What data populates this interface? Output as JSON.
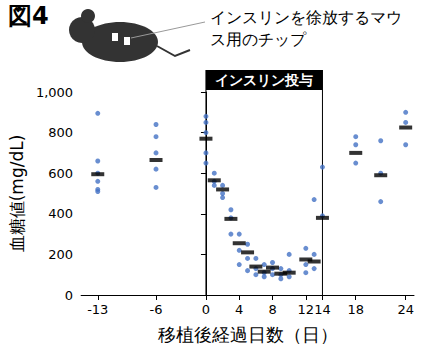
{
  "chart_data": {
    "type": "scatter",
    "title": "図4",
    "annotations": [
      "インスリンを徐放するマウス用のチップ"
    ],
    "band": {
      "label": "インスリン投与",
      "start": 0,
      "end": 14
    },
    "x_label": "移植後経過日数（日）",
    "y_label": "血糖値(mg/dL)",
    "xlim": [
      -15,
      25
    ],
    "xticks": [
      -13,
      -6,
      0,
      4,
      8,
      12,
      14,
      18,
      24
    ],
    "ylim": [
      0,
      1000
    ],
    "yticks": [
      0,
      200,
      400,
      600,
      800,
      {
        "value": 1000,
        "label": "1,000"
      }
    ],
    "grid": false,
    "series": [
      {
        "marker": "circle",
        "color": "#4472c4",
        "x": [
          -13,
          -13,
          -13,
          -13,
          -13,
          -13,
          -6,
          -6,
          -6,
          -6,
          -6,
          0,
          0,
          0,
          0,
          0,
          1,
          1,
          1,
          2,
          2,
          2,
          3,
          3,
          3,
          4,
          4,
          4,
          5,
          5,
          5,
          6,
          6,
          6,
          7,
          7,
          7,
          8,
          8,
          8,
          9,
          9,
          9,
          10,
          10,
          10,
          12,
          12,
          12,
          13,
          13,
          13,
          14,
          14,
          18,
          18,
          18,
          21,
          21,
          21,
          24,
          24,
          24
        ],
        "values": [
          895,
          660,
          560,
          520,
          510,
          600,
          840,
          780,
          700,
          620,
          530,
          880,
          850,
          800,
          700,
          650,
          560,
          540,
          600,
          540,
          500,
          480,
          420,
          380,
          300,
          300,
          220,
          150,
          250,
          180,
          120,
          180,
          130,
          100,
          150,
          110,
          90,
          160,
          130,
          100,
          130,
          100,
          80,
          200,
          120,
          90,
          230,
          150,
          110,
          470,
          200,
          130,
          630,
          390,
          780,
          740,
          650,
          760,
          600,
          460,
          900,
          850,
          740
        ]
      },
      {
        "marker": "dash",
        "color": "#000000",
        "x": [
          -13,
          -6,
          0,
          1,
          2,
          3,
          4,
          5,
          6,
          7,
          8,
          9,
          10,
          12,
          13,
          14,
          18,
          21,
          24
        ],
        "values": [
          595,
          665,
          770,
          565,
          520,
          375,
          255,
          210,
          140,
          115,
          135,
          105,
          110,
          175,
          165,
          380,
          700,
          590,
          825
        ]
      }
    ]
  }
}
